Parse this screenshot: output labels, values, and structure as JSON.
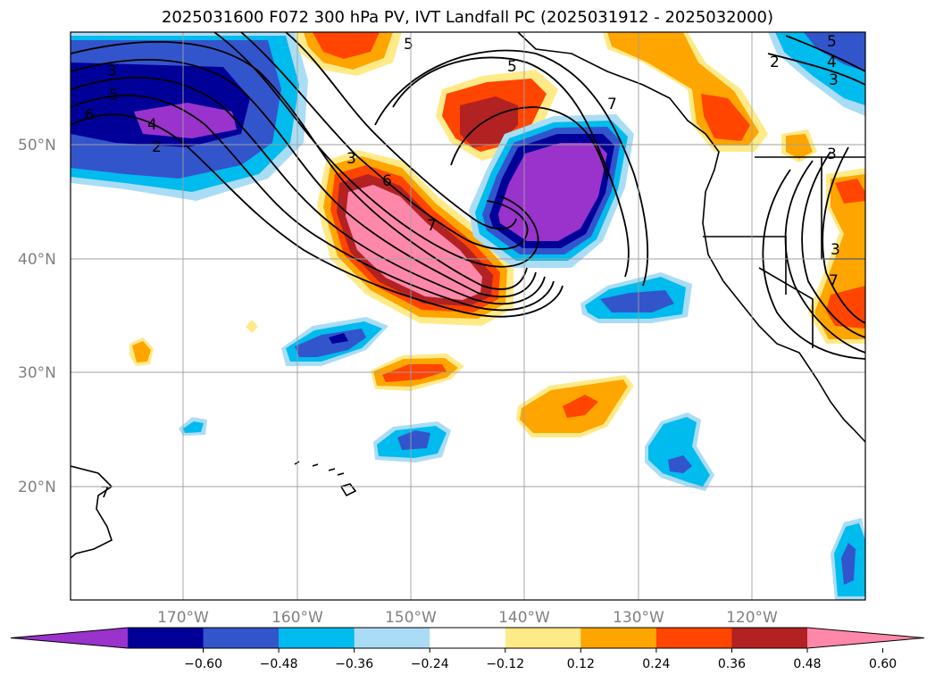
{
  "title": "2025031600 F072 300 hPa PV, IVT Landfall PC (2025031912 - 2025032000)",
  "map": {
    "lat_labels": [
      "50°N",
      "40°N",
      "30°N",
      "20°N"
    ],
    "lon_labels": [
      "170°W",
      "160°W",
      "150°W",
      "140°W",
      "130°W",
      "120°W"
    ],
    "contour_labels": [
      "3",
      "5",
      "6",
      "4",
      "2",
      "3",
      "5",
      "6",
      "7",
      "5",
      "7",
      "2",
      "3",
      "4",
      "5",
      "3",
      "3",
      "7",
      "7"
    ]
  },
  "colorbar": {
    "colors": [
      "#9933cc",
      "#000099",
      "#3355cc",
      "#00bbee",
      "#aaddf5",
      "#ffffff",
      "#ffea88",
      "#ffa500",
      "#ff4500",
      "#b22222",
      "#ff88aa"
    ],
    "tick_labels": [
      "−0.60",
      "−0.48",
      "−0.36",
      "−0.24",
      "−0.12",
      "0.12",
      "0.24",
      "0.36",
      "0.48",
      "0.60"
    ]
  }
}
